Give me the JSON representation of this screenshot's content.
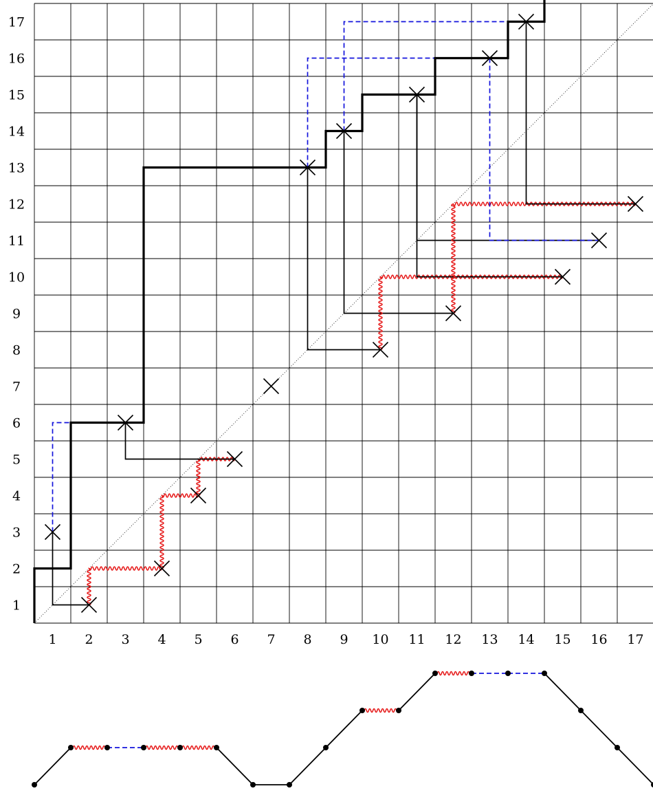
{
  "grid": {
    "cols": 17,
    "rows": 17
  },
  "x_labels": [
    "1",
    "2",
    "3",
    "4",
    "5",
    "6",
    "7",
    "8",
    "9",
    "10",
    "11",
    "12",
    "13",
    "14",
    "15",
    "16",
    "17"
  ],
  "y_labels": [
    "1",
    "2",
    "3",
    "4",
    "5",
    "6",
    "7",
    "8",
    "9",
    "10",
    "11",
    "12",
    "13",
    "14",
    "15",
    "16",
    "17"
  ],
  "crosses": [
    {
      "x": 1,
      "y": 3
    },
    {
      "x": 2,
      "y": 1
    },
    {
      "x": 3,
      "y": 6
    },
    {
      "x": 4,
      "y": 2
    },
    {
      "x": 5,
      "y": 4
    },
    {
      "x": 6,
      "y": 5
    },
    {
      "x": 7,
      "y": 7
    },
    {
      "x": 8,
      "y": 13
    },
    {
      "x": 9,
      "y": 14
    },
    {
      "x": 10,
      "y": 8
    },
    {
      "x": 11,
      "y": 15
    },
    {
      "x": 12,
      "y": 9
    },
    {
      "x": 13,
      "y": 16
    },
    {
      "x": 14,
      "y": 17
    },
    {
      "x": 15,
      "y": 10
    },
    {
      "x": 16,
      "y": 11
    },
    {
      "x": 17,
      "y": 12
    }
  ],
  "arcs": [
    {
      "a": 1,
      "b": 2,
      "style": "solid"
    },
    {
      "a": 1,
      "b": 3,
      "style": "dashed"
    },
    {
      "a": 2,
      "b": 4,
      "style": "wavy"
    },
    {
      "a": 4,
      "b": 5,
      "style": "wavy"
    },
    {
      "a": 5,
      "b": 6,
      "style": "wavy"
    },
    {
      "a": 3,
      "b": 6,
      "style": "solid"
    },
    {
      "a": 8,
      "b": 10,
      "style": "solid"
    },
    {
      "a": 8,
      "b": 13,
      "style": "dashed"
    },
    {
      "a": 9,
      "b": 12,
      "style": "solid"
    },
    {
      "a": 9,
      "b": 14,
      "style": "dashed"
    },
    {
      "a": 10,
      "b": 15,
      "style": "wavy"
    },
    {
      "a": 11,
      "b": 16,
      "style": "solid"
    },
    {
      "a": 11,
      "b": 15,
      "style": "solid"
    },
    {
      "a": 12,
      "b": 17,
      "style": "wavy"
    },
    {
      "a": 13,
      "b": 16,
      "style": "dashed"
    },
    {
      "a": 14,
      "b": 17,
      "style": "solid"
    }
  ],
  "staircase": [
    [
      0,
      0
    ],
    [
      0,
      1.5
    ],
    [
      1,
      1.5
    ],
    [
      1,
      5.5
    ],
    [
      3,
      5.5
    ],
    [
      3,
      12.5
    ],
    [
      8,
      12.5
    ],
    [
      8,
      13.5
    ],
    [
      9,
      13.5
    ],
    [
      9,
      14.5
    ],
    [
      11,
      14.5
    ],
    [
      11,
      15.5
    ],
    [
      13,
      15.5
    ],
    [
      13,
      16.5
    ],
    [
      14,
      16.5
    ],
    [
      14,
      17.5
    ],
    [
      17,
      17.5
    ]
  ],
  "motzkin_path": {
    "heights": [
      0,
      1,
      1,
      1,
      1,
      1,
      0,
      0,
      1,
      2,
      2,
      3,
      3,
      3,
      3,
      2,
      1,
      0
    ],
    "steps": [
      "up",
      "wavy",
      "dashed",
      "wavy",
      "wavy",
      "down",
      "flat",
      "up",
      "up",
      "wavy",
      "up",
      "wavy",
      "dashed",
      "dashed",
      "down",
      "down",
      "down"
    ]
  },
  "colors": {
    "line": "#000000",
    "dashed": "#1414dc",
    "wavy": "#e61919",
    "diagonal": "#000000"
  }
}
